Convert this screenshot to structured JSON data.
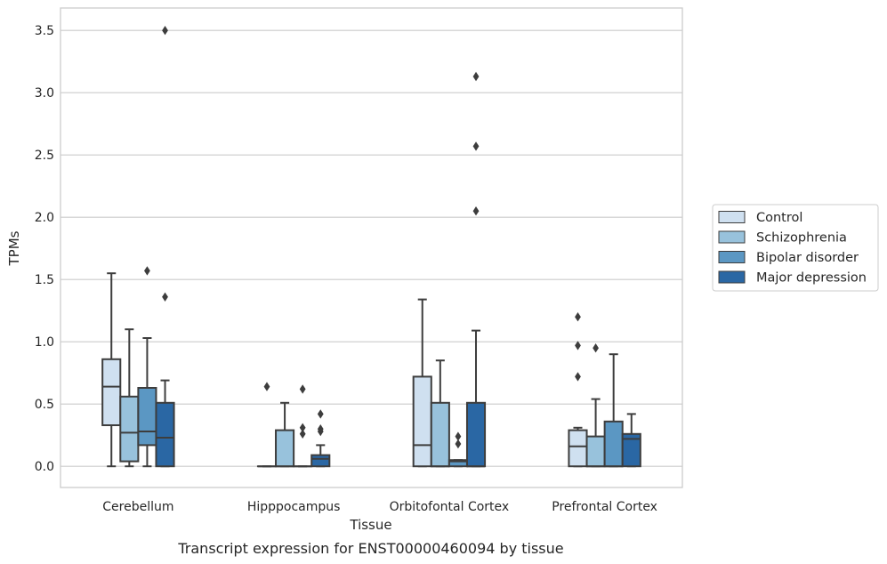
{
  "chart_data": {
    "type": "box",
    "xlabel": "Tissue",
    "ylabel": "TPMs",
    "caption": "Transcript expression for ENST00000460094 by tissue",
    "ylim": [
      -0.17,
      3.68
    ],
    "yticks": [
      "0.0",
      "0.5",
      "1.0",
      "1.5",
      "2.0",
      "2.5",
      "3.0",
      "3.5"
    ],
    "categories": [
      "Cerebellum",
      "Hipppocampus",
      "Orbitofontal Cortex",
      "Prefrontal Cortex"
    ],
    "grid": "horizontal",
    "legend_position": "right",
    "series": [
      {
        "name": "Control",
        "color": "#cfe0f0",
        "boxes": [
          {
            "q1": 0.33,
            "median": 0.64,
            "q3": 0.86,
            "whislo": 0.0,
            "whishi": 1.55,
            "fliers": []
          },
          {
            "q1": 0.0,
            "median": 0.0,
            "q3": 0.0,
            "whislo": 0.0,
            "whishi": 0.0,
            "fliers": [
              0.64
            ]
          },
          {
            "q1": 0.0,
            "median": 0.17,
            "q3": 0.72,
            "whislo": 0.0,
            "whishi": 1.34,
            "fliers": []
          },
          {
            "q1": 0.0,
            "median": 0.16,
            "q3": 0.29,
            "whislo": 0.0,
            "whishi": 0.31,
            "fliers": [
              0.72,
              0.97,
              1.2
            ]
          }
        ]
      },
      {
        "name": "Schizophrenia",
        "color": "#98c2dc",
        "boxes": [
          {
            "q1": 0.04,
            "median": 0.27,
            "q3": 0.56,
            "whislo": 0.0,
            "whishi": 1.1,
            "fliers": []
          },
          {
            "q1": 0.0,
            "median": 0.0,
            "q3": 0.29,
            "whislo": 0.0,
            "whishi": 0.51,
            "fliers": []
          },
          {
            "q1": 0.0,
            "median": 0.0,
            "q3": 0.51,
            "whislo": 0.0,
            "whishi": 0.85,
            "fliers": []
          },
          {
            "q1": 0.0,
            "median": 0.0,
            "q3": 0.24,
            "whislo": 0.0,
            "whishi": 0.54,
            "fliers": [
              0.95
            ]
          }
        ]
      },
      {
        "name": "Bipolar disorder",
        "color": "#5b97c3",
        "boxes": [
          {
            "q1": 0.17,
            "median": 0.28,
            "q3": 0.63,
            "whislo": 0.0,
            "whishi": 1.03,
            "fliers": [
              1.57
            ]
          },
          {
            "q1": 0.0,
            "median": 0.0,
            "q3": 0.0,
            "whislo": 0.0,
            "whishi": 0.0,
            "fliers": [
              0.26,
              0.31,
              0.62
            ]
          },
          {
            "q1": 0.0,
            "median": 0.04,
            "q3": 0.05,
            "whislo": 0.0,
            "whishi": 0.05,
            "fliers": [
              0.18,
              0.24
            ]
          },
          {
            "q1": 0.0,
            "median": 0.0,
            "q3": 0.36,
            "whislo": 0.0,
            "whishi": 0.9,
            "fliers": []
          }
        ]
      },
      {
        "name": "Major depression",
        "color": "#2a67a4",
        "boxes": [
          {
            "q1": 0.0,
            "median": 0.23,
            "q3": 0.51,
            "whislo": 0.0,
            "whishi": 0.69,
            "fliers": [
              1.36,
              3.5
            ]
          },
          {
            "q1": 0.0,
            "median": 0.06,
            "q3": 0.09,
            "whislo": 0.0,
            "whishi": 0.17,
            "fliers": [
              0.28,
              0.3,
              0.42
            ]
          },
          {
            "q1": 0.0,
            "median": 0.0,
            "q3": 0.51,
            "whislo": 0.0,
            "whishi": 1.09,
            "fliers": [
              2.05,
              2.57,
              3.13
            ]
          },
          {
            "q1": 0.0,
            "median": 0.22,
            "q3": 0.26,
            "whislo": 0.0,
            "whishi": 0.42,
            "fliers": []
          }
        ]
      }
    ]
  }
}
